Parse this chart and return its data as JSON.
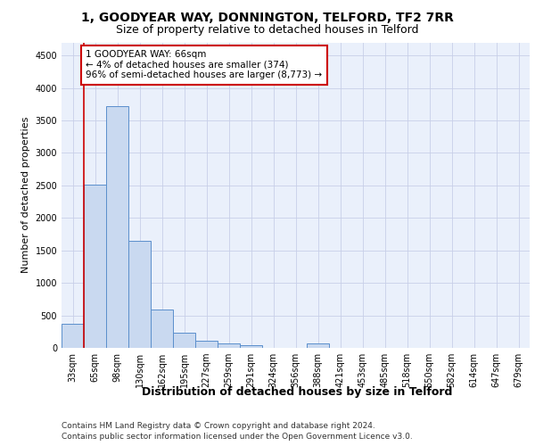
{
  "title1": "1, GOODYEAR WAY, DONNINGTON, TELFORD, TF2 7RR",
  "title2": "Size of property relative to detached houses in Telford",
  "xlabel": "Distribution of detached houses by size in Telford",
  "ylabel": "Number of detached properties",
  "categories": [
    "33sqm",
    "65sqm",
    "98sqm",
    "130sqm",
    "162sqm",
    "195sqm",
    "227sqm",
    "259sqm",
    "291sqm",
    "324sqm",
    "356sqm",
    "388sqm",
    "421sqm",
    "453sqm",
    "485sqm",
    "518sqm",
    "550sqm",
    "582sqm",
    "614sqm",
    "647sqm",
    "679sqm"
  ],
  "values": [
    370,
    2510,
    3720,
    1640,
    595,
    230,
    110,
    65,
    45,
    0,
    0,
    65,
    0,
    0,
    0,
    0,
    0,
    0,
    0,
    0,
    0
  ],
  "bar_color": "#c9d9f0",
  "bar_edge_color": "#5b8fcc",
  "annotation_box_text": "1 GOODYEAR WAY: 66sqm\n← 4% of detached houses are smaller (374)\n96% of semi-detached houses are larger (8,773) →",
  "annotation_box_color": "#ffffff",
  "annotation_box_edge_color": "#cc0000",
  "vline_color": "#cc0000",
  "ylim": [
    0,
    4700
  ],
  "yticks": [
    0,
    500,
    1000,
    1500,
    2000,
    2500,
    3000,
    3500,
    4000,
    4500
  ],
  "footer1": "Contains HM Land Registry data © Crown copyright and database right 2024.",
  "footer2": "Contains public sector information licensed under the Open Government Licence v3.0.",
  "bg_color": "#eaf0fb",
  "title1_fontsize": 10,
  "title2_fontsize": 9,
  "xlabel_fontsize": 9,
  "ylabel_fontsize": 8,
  "tick_fontsize": 7,
  "annotation_fontsize": 7.5,
  "footer_fontsize": 6.5,
  "grid_color": "#c8cfe8",
  "vline_x_index": 0.5
}
